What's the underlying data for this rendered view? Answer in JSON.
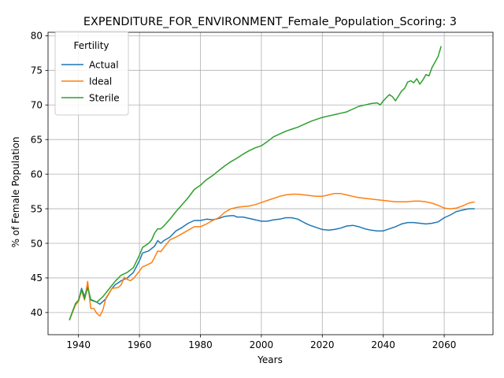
{
  "chart_data": {
    "type": "line",
    "title": "EXPENDITURE_FOR_ENVIRONMENT_Female_Population_Scoring: 3",
    "xlabel": "Years",
    "ylabel": "% of Female Population",
    "xlim": [
      1930,
      2076
    ],
    "ylim": [
      36.8,
      80.5
    ],
    "xticks": [
      1940,
      1960,
      1980,
      2000,
      2020,
      2040,
      2060
    ],
    "yticks": [
      40,
      45,
      50,
      55,
      60,
      65,
      70,
      75,
      80
    ],
    "grid": true,
    "legend": {
      "title": "Fertility",
      "position": "top-left"
    },
    "series": [
      {
        "name": "Actual",
        "color": "#1f77b4",
        "points": [
          [
            1937,
            38.9
          ],
          [
            1939,
            41.2
          ],
          [
            1940,
            41.7
          ],
          [
            1941,
            43.5
          ],
          [
            1942,
            42.3
          ],
          [
            1943,
            43.9
          ],
          [
            1944,
            41.8
          ],
          [
            1946,
            41.5
          ],
          [
            1947,
            41.2
          ],
          [
            1949,
            42.0
          ],
          [
            1951,
            43.5
          ],
          [
            1952,
            44.0
          ],
          [
            1954,
            44.6
          ],
          [
            1956,
            45.0
          ],
          [
            1958,
            45.8
          ],
          [
            1960,
            47.5
          ],
          [
            1961,
            48.6
          ],
          [
            1963,
            48.9
          ],
          [
            1965,
            49.6
          ],
          [
            1966,
            50.4
          ],
          [
            1967,
            50.0
          ],
          [
            1968,
            50.4
          ],
          [
            1970,
            50.9
          ],
          [
            1972,
            51.8
          ],
          [
            1974,
            52.3
          ],
          [
            1976,
            52.9
          ],
          [
            1978,
            53.3
          ],
          [
            1980,
            53.3
          ],
          [
            1982,
            53.5
          ],
          [
            1984,
            53.4
          ],
          [
            1986,
            53.6
          ],
          [
            1988,
            53.9
          ],
          [
            1990,
            54.0
          ],
          [
            1991,
            54.0
          ],
          [
            1992,
            53.8
          ],
          [
            1994,
            53.8
          ],
          [
            1996,
            53.6
          ],
          [
            1998,
            53.4
          ],
          [
            2000,
            53.2
          ],
          [
            2002,
            53.2
          ],
          [
            2004,
            53.4
          ],
          [
            2006,
            53.5
          ],
          [
            2008,
            53.7
          ],
          [
            2010,
            53.7
          ],
          [
            2012,
            53.5
          ],
          [
            2014,
            53.0
          ],
          [
            2015,
            52.8
          ],
          [
            2016,
            52.6
          ],
          [
            2018,
            52.3
          ],
          [
            2020,
            52.0
          ],
          [
            2022,
            51.9
          ],
          [
            2024,
            52.0
          ],
          [
            2026,
            52.2
          ],
          [
            2028,
            52.5
          ],
          [
            2030,
            52.6
          ],
          [
            2032,
            52.4
          ],
          [
            2034,
            52.1
          ],
          [
            2036,
            51.9
          ],
          [
            2038,
            51.8
          ],
          [
            2040,
            51.8
          ],
          [
            2042,
            52.1
          ],
          [
            2044,
            52.4
          ],
          [
            2046,
            52.8
          ],
          [
            2048,
            53.0
          ],
          [
            2050,
            53.0
          ],
          [
            2052,
            52.9
          ],
          [
            2054,
            52.8
          ],
          [
            2056,
            52.9
          ],
          [
            2058,
            53.1
          ],
          [
            2060,
            53.7
          ],
          [
            2062,
            54.1
          ],
          [
            2064,
            54.6
          ],
          [
            2066,
            54.8
          ],
          [
            2068,
            55.0
          ],
          [
            2070,
            55.0
          ]
        ]
      },
      {
        "name": "Ideal",
        "color": "#ff7f0e",
        "points": [
          [
            1937,
            38.9
          ],
          [
            1939,
            41.1
          ],
          [
            1940,
            41.6
          ],
          [
            1941,
            43.2
          ],
          [
            1942,
            41.8
          ],
          [
            1943,
            44.5
          ],
          [
            1944,
            40.6
          ],
          [
            1945,
            40.6
          ],
          [
            1946,
            39.9
          ],
          [
            1947,
            39.5
          ],
          [
            1948,
            40.4
          ],
          [
            1949,
            42.1
          ],
          [
            1950,
            42.8
          ],
          [
            1951,
            43.5
          ],
          [
            1953,
            43.6
          ],
          [
            1954,
            44.0
          ],
          [
            1955,
            45.1
          ],
          [
            1956,
            44.8
          ],
          [
            1957,
            44.6
          ],
          [
            1958,
            44.9
          ],
          [
            1960,
            46.0
          ],
          [
            1961,
            46.6
          ],
          [
            1963,
            47.0
          ],
          [
            1964,
            47.2
          ],
          [
            1965,
            48.0
          ],
          [
            1966,
            48.9
          ],
          [
            1967,
            48.8
          ],
          [
            1968,
            49.4
          ],
          [
            1970,
            50.5
          ],
          [
            1972,
            50.9
          ],
          [
            1974,
            51.4
          ],
          [
            1976,
            51.9
          ],
          [
            1978,
            52.4
          ],
          [
            1980,
            52.4
          ],
          [
            1982,
            52.8
          ],
          [
            1984,
            53.3
          ],
          [
            1986,
            53.7
          ],
          [
            1988,
            54.5
          ],
          [
            1990,
            55.0
          ],
          [
            1992,
            55.2
          ],
          [
            1994,
            55.3
          ],
          [
            1996,
            55.4
          ],
          [
            1998,
            55.6
          ],
          [
            2000,
            55.9
          ],
          [
            2002,
            56.2
          ],
          [
            2004,
            56.5
          ],
          [
            2006,
            56.8
          ],
          [
            2008,
            57.0
          ],
          [
            2010,
            57.1
          ],
          [
            2012,
            57.1
          ],
          [
            2014,
            57.0
          ],
          [
            2016,
            56.9
          ],
          [
            2018,
            56.8
          ],
          [
            2020,
            56.8
          ],
          [
            2022,
            57.0
          ],
          [
            2024,
            57.2
          ],
          [
            2026,
            57.2
          ],
          [
            2028,
            57.0
          ],
          [
            2030,
            56.8
          ],
          [
            2032,
            56.6
          ],
          [
            2034,
            56.5
          ],
          [
            2036,
            56.4
          ],
          [
            2038,
            56.3
          ],
          [
            2040,
            56.2
          ],
          [
            2042,
            56.1
          ],
          [
            2044,
            56.0
          ],
          [
            2046,
            56.0
          ],
          [
            2048,
            56.0
          ],
          [
            2050,
            56.1
          ],
          [
            2052,
            56.1
          ],
          [
            2054,
            56.0
          ],
          [
            2056,
            55.8
          ],
          [
            2058,
            55.5
          ],
          [
            2060,
            55.1
          ],
          [
            2062,
            55.0
          ],
          [
            2064,
            55.1
          ],
          [
            2066,
            55.4
          ],
          [
            2068,
            55.8
          ],
          [
            2070,
            56.0
          ]
        ]
      },
      {
        "name": "Sterile",
        "color": "#2ca02c",
        "points": [
          [
            1937,
            38.9
          ],
          [
            1939,
            41.3
          ],
          [
            1940,
            41.8
          ],
          [
            1941,
            43.3
          ],
          [
            1942,
            42.0
          ],
          [
            1943,
            43.6
          ],
          [
            1944,
            41.9
          ],
          [
            1946,
            41.5
          ],
          [
            1948,
            42.3
          ],
          [
            1950,
            43.4
          ],
          [
            1952,
            44.5
          ],
          [
            1954,
            45.4
          ],
          [
            1956,
            45.8
          ],
          [
            1958,
            46.5
          ],
          [
            1960,
            48.3
          ],
          [
            1961,
            49.4
          ],
          [
            1963,
            50.0
          ],
          [
            1964,
            50.5
          ],
          [
            1965,
            51.5
          ],
          [
            1966,
            52.1
          ],
          [
            1967,
            52.1
          ],
          [
            1968,
            52.5
          ],
          [
            1970,
            53.5
          ],
          [
            1972,
            54.6
          ],
          [
            1974,
            55.6
          ],
          [
            1976,
            56.6
          ],
          [
            1978,
            57.8
          ],
          [
            1980,
            58.4
          ],
          [
            1982,
            59.2
          ],
          [
            1984,
            59.8
          ],
          [
            1986,
            60.5
          ],
          [
            1988,
            61.2
          ],
          [
            1990,
            61.8
          ],
          [
            1992,
            62.3
          ],
          [
            1994,
            62.9
          ],
          [
            1996,
            63.4
          ],
          [
            1998,
            63.8
          ],
          [
            2000,
            64.1
          ],
          [
            2002,
            64.7
          ],
          [
            2004,
            65.4
          ],
          [
            2006,
            65.8
          ],
          [
            2008,
            66.2
          ],
          [
            2010,
            66.5
          ],
          [
            2012,
            66.8
          ],
          [
            2014,
            67.2
          ],
          [
            2016,
            67.6
          ],
          [
            2018,
            67.9
          ],
          [
            2020,
            68.2
          ],
          [
            2022,
            68.4
          ],
          [
            2024,
            68.6
          ],
          [
            2026,
            68.8
          ],
          [
            2028,
            69.0
          ],
          [
            2030,
            69.4
          ],
          [
            2032,
            69.8
          ],
          [
            2034,
            70.0
          ],
          [
            2036,
            70.2
          ],
          [
            2038,
            70.3
          ],
          [
            2039,
            70.0
          ],
          [
            2040,
            70.6
          ],
          [
            2042,
            71.5
          ],
          [
            2043,
            71.2
          ],
          [
            2044,
            70.6
          ],
          [
            2046,
            72.0
          ],
          [
            2047,
            72.4
          ],
          [
            2048,
            73.3
          ],
          [
            2049,
            73.5
          ],
          [
            2050,
            73.2
          ],
          [
            2051,
            73.8
          ],
          [
            2052,
            73.0
          ],
          [
            2053,
            73.6
          ],
          [
            2054,
            74.4
          ],
          [
            2055,
            74.2
          ],
          [
            2056,
            75.4
          ],
          [
            2057,
            76.2
          ],
          [
            2058,
            77.0
          ],
          [
            2059,
            78.5
          ]
        ]
      }
    ]
  }
}
